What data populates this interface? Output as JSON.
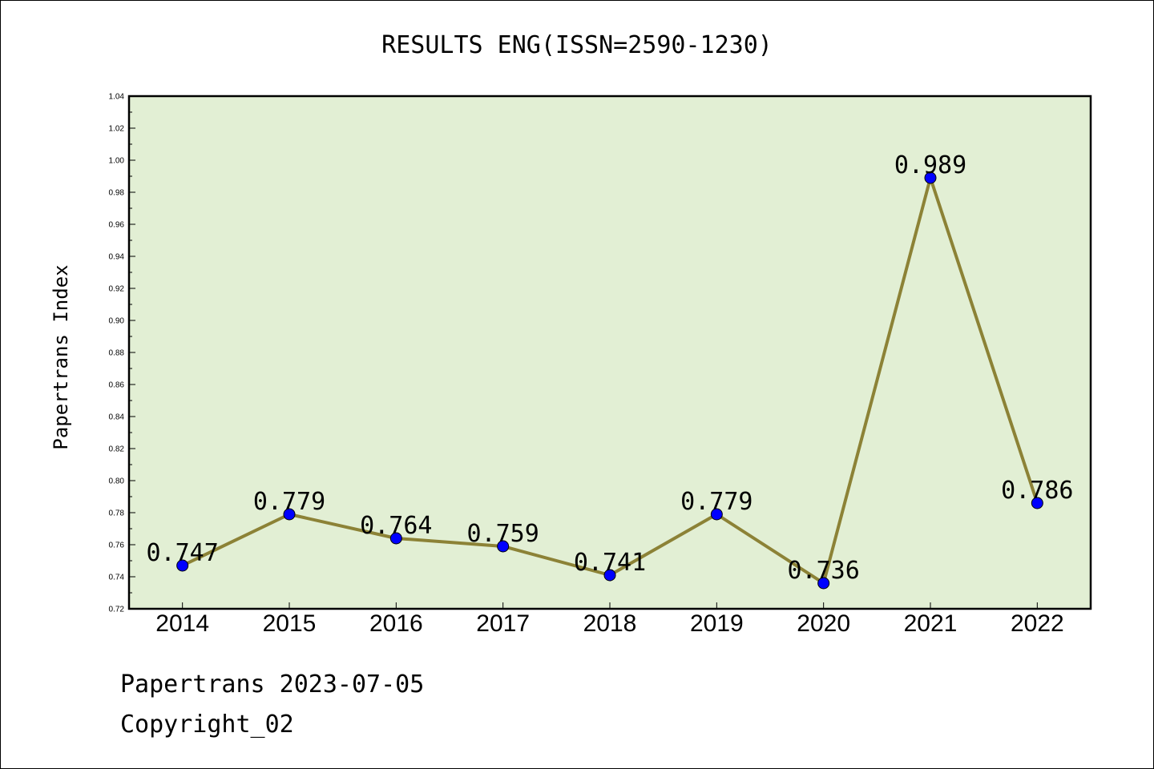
{
  "chart_data": {
    "type": "line",
    "title": "RESULTS ENG(ISSN=2590-1230)",
    "xlabel": "",
    "ylabel": "Papertrans Index",
    "categories": [
      "2014",
      "2015",
      "2016",
      "2017",
      "2018",
      "2019",
      "2020",
      "2021",
      "2022"
    ],
    "values": [
      0.747,
      0.779,
      0.764,
      0.759,
      0.741,
      0.779,
      0.736,
      0.989,
      0.786
    ],
    "data_labels": [
      "0.747",
      "0.779",
      "0.764",
      "0.759",
      "0.741",
      "0.779",
      "0.736",
      "0.989",
      "0.786"
    ],
    "ylim": [
      0.72,
      1.04
    ],
    "yticks": [
      "0.72",
      "0.74",
      "0.76",
      "0.78",
      "0.80",
      "0.82",
      "0.84",
      "0.86",
      "0.88",
      "0.90",
      "0.92",
      "0.94",
      "0.96",
      "0.98",
      "1.00",
      "1.02",
      "1.04"
    ],
    "grid": false,
    "colors": {
      "plot_background": "#e2efd4",
      "line": "#8c8236",
      "marker": "#0000ff"
    }
  },
  "footer": {
    "line1": "Papertrans 2023-07-05",
    "line2": "Copyright_02"
  }
}
